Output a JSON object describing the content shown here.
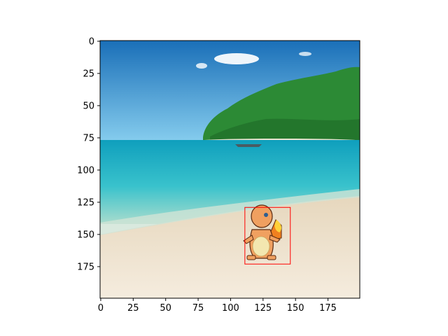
{
  "chart_data": {
    "type": "image",
    "title": "",
    "xlabel": "",
    "ylabel": "",
    "xlim": [
      -0.5,
      199.5
    ],
    "ylim": [
      199.5,
      -0.5
    ],
    "x_ticks": [
      0,
      25,
      50,
      75,
      100,
      125,
      150,
      175
    ],
    "y_ticks": [
      0,
      25,
      50,
      75,
      100,
      125,
      150,
      175
    ],
    "image_content": "beach",
    "sprite": "charmander",
    "bounding_box": {
      "x_min": 111,
      "x_max": 146,
      "y_min": 129,
      "y_max": 173,
      "color": "#ff0000"
    }
  },
  "colors": {
    "sky_top": "#1f7fc4",
    "sky_bottom": "#7fc8ec",
    "sea": "#22b3c9",
    "sand": "#efe3cd",
    "island": "#2e8a2e",
    "bbox": "#ff0000"
  }
}
